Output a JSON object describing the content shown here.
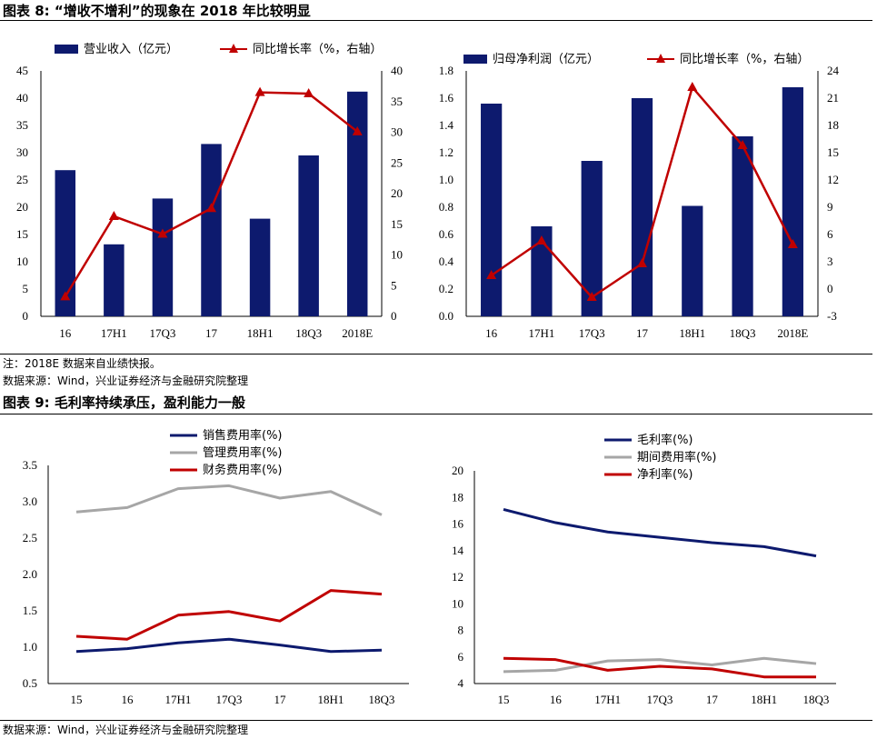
{
  "figure8": {
    "title": "图表 8: “增收不增利”的现象在 2018 年比较明显",
    "note": "注：2018E 数据来自业绩快报。",
    "source": "数据来源：Wind，兴业证券经济与金融研究院整理"
  },
  "figure9": {
    "title": "图表 9: 毛利率持续承压，盈利能力一般",
    "source": "数据来源：Wind，兴业证券经济与金融研究院整理"
  },
  "colors": {
    "bar": "#0d1a6e",
    "growth": "#c00000",
    "blue": "#0d1a6e",
    "gray": "#a6a6a6",
    "red": "#c00000"
  },
  "chart_data": [
    {
      "type": "bar",
      "categories": [
        "16",
        "17H1",
        "17Q3",
        "17",
        "18H1",
        "18Q3",
        "2018E"
      ],
      "series": [
        {
          "name": "营业收入（亿元）",
          "type": "bar",
          "axis": "left",
          "values": [
            26.8,
            13.2,
            21.6,
            31.6,
            17.9,
            29.5,
            41.2
          ]
        },
        {
          "name": "同比增长率（%，右轴）",
          "type": "line",
          "axis": "right",
          "values": [
            3.2,
            16.3,
            13.4,
            17.6,
            36.5,
            36.3,
            30.1
          ]
        }
      ],
      "y_left": {
        "ylim": [
          0,
          45
        ],
        "ticks": [
          "0",
          "5",
          "10",
          "15",
          "20",
          "25",
          "30",
          "35",
          "40",
          "45"
        ]
      },
      "y_right": {
        "ylim": [
          0,
          40
        ],
        "ticks": [
          "0",
          "5",
          "10",
          "15",
          "20",
          "25",
          "30",
          "35",
          "40"
        ]
      }
    },
    {
      "type": "bar",
      "categories": [
        "16",
        "17H1",
        "17Q3",
        "17",
        "18H1",
        "18Q3",
        "2018E"
      ],
      "series": [
        {
          "name": "归母净利润（亿元）",
          "type": "bar",
          "axis": "left",
          "values": [
            1.56,
            0.66,
            1.14,
            1.6,
            0.81,
            1.32,
            1.68
          ]
        },
        {
          "name": "同比增长率（%，右轴）",
          "type": "line",
          "axis": "right",
          "values": [
            1.5,
            5.3,
            -0.9,
            2.8,
            22.2,
            15.8,
            4.9
          ]
        }
      ],
      "y_left": {
        "ylim": [
          0,
          1.8
        ],
        "ticks": [
          "0.0",
          "0.2",
          "0.4",
          "0.6",
          "0.8",
          "1.0",
          "1.2",
          "1.4",
          "1.6",
          "1.8"
        ]
      },
      "y_right": {
        "ylim": [
          -3,
          24
        ],
        "ticks": [
          "-3",
          "0",
          "3",
          "6",
          "9",
          "12",
          "15",
          "18",
          "21",
          "24"
        ]
      }
    },
    {
      "type": "line",
      "categories": [
        "15",
        "16",
        "17H1",
        "17Q3",
        "17",
        "18H1",
        "18Q3"
      ],
      "series": [
        {
          "name": "销售费用率(%)",
          "values": [
            0.94,
            0.98,
            1.06,
            1.11,
            1.03,
            0.94,
            0.96
          ]
        },
        {
          "name": "管理费用率(%)",
          "values": [
            2.86,
            2.92,
            3.18,
            3.22,
            3.05,
            3.14,
            2.82
          ]
        },
        {
          "name": "财务费用率(%)",
          "values": [
            1.15,
            1.11,
            1.44,
            1.49,
            1.36,
            1.78,
            1.73
          ]
        }
      ],
      "ylim": [
        0.5,
        3.5
      ],
      "yticks": [
        "0.5",
        "1.0",
        "1.5",
        "2.0",
        "2.5",
        "3.0",
        "3.5"
      ]
    },
    {
      "type": "line",
      "categories": [
        "15",
        "16",
        "17H1",
        "17Q3",
        "17",
        "18H1",
        "18Q3"
      ],
      "series": [
        {
          "name": "毛利率(%)",
          "values": [
            17.1,
            16.1,
            15.4,
            15.0,
            14.6,
            14.3,
            13.6
          ]
        },
        {
          "name": "期间费用率(%)",
          "values": [
            4.9,
            5.0,
            5.7,
            5.8,
            5.4,
            5.9,
            5.5
          ]
        },
        {
          "name": "净利率(%)",
          "values": [
            5.9,
            5.8,
            5.0,
            5.3,
            5.1,
            4.5,
            4.5
          ]
        }
      ],
      "ylim": [
        4,
        20
      ],
      "yticks": [
        "4",
        "6",
        "8",
        "10",
        "12",
        "14",
        "16",
        "18",
        "20"
      ]
    }
  ]
}
